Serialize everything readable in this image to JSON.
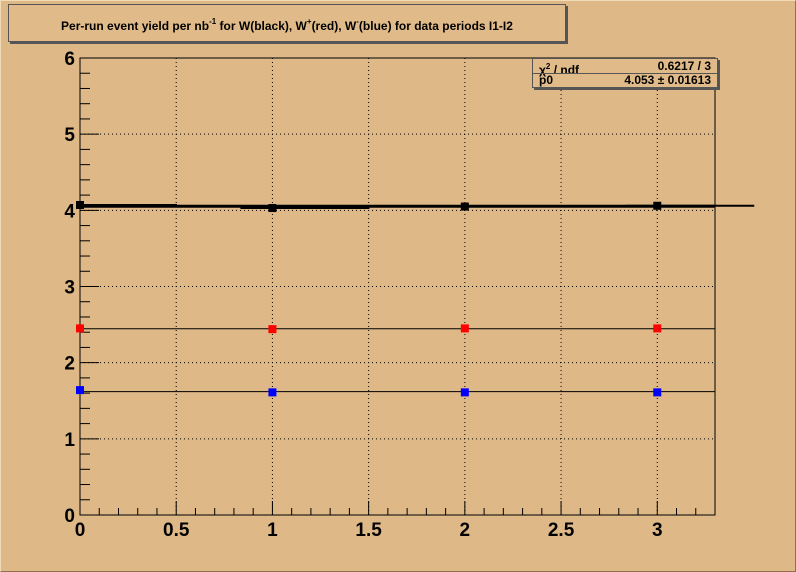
{
  "title_parts": [
    "Per-run event yield per nb",
    "-1",
    " for W(black), W",
    "+",
    "(red), W",
    "-",
    "(blue) for data periods I1-I2"
  ],
  "stats": {
    "chi2_label": "χ",
    "chi2_sup": "2",
    "chi2_rest": " / ndf",
    "chi2_value": "0.6217 / 3",
    "p0_label": "p0",
    "p0_value": "4.053 ± 0.01613"
  },
  "chart_data": {
    "type": "scatter",
    "title": "Per-run event yield per nb-1 for W(black), W+(red), W-(blue) for data periods I1-I2",
    "xlim": [
      0,
      3.3
    ],
    "ylim": [
      0,
      6
    ],
    "grid": true,
    "x_ticks": [
      "0",
      "0.5",
      "1",
      "1.5",
      "2",
      "2.5",
      "3"
    ],
    "y_ticks": [
      "0",
      "1",
      "2",
      "3",
      "4",
      "5",
      "6"
    ],
    "series": [
      {
        "color": "#000000",
        "x": [
          0,
          1,
          2,
          3
        ],
        "y": [
          4.07,
          4.03,
          4.05,
          4.06
        ],
        "fit": 4.053
      },
      {
        "color": "#ff0000",
        "x": [
          0,
          1,
          2,
          3
        ],
        "y": [
          2.45,
          2.44,
          2.45,
          2.45
        ],
        "fit": 2.445
      },
      {
        "color": "#0000ff",
        "x": [
          0,
          1,
          2,
          3
        ],
        "y": [
          1.64,
          1.61,
          1.61,
          1.61
        ],
        "fit": 1.62
      }
    ]
  }
}
